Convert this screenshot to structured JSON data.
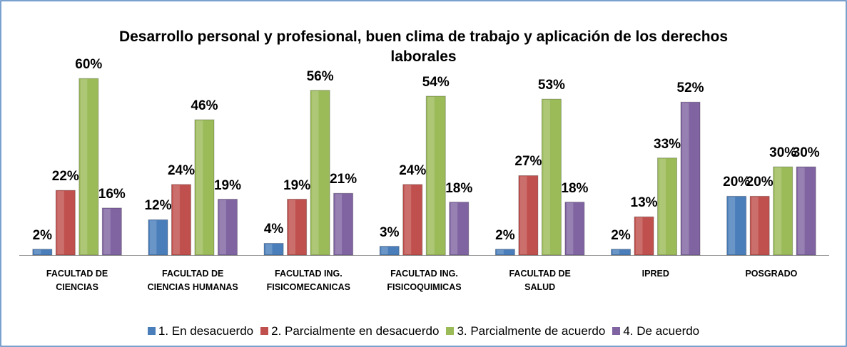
{
  "chart_data": {
    "type": "bar",
    "title": "Desarrollo personal y profesional, buen clima de trabajo y aplicación de los derechos laborales",
    "categories": [
      "FACULTAD DE\nCIENCIAS",
      "FACULTAD DE\nCIENCIAS HUMANAS",
      "FACULTAD ING.\nFISICOMECANICAS",
      "FACULTAD ING.\nFISICOQUIMICAS",
      "FACULTAD DE\nSALUD",
      "IPRED",
      "POSGRADO"
    ],
    "series": [
      {
        "name": "1. En desacuerdo",
        "color": "#4a7ebb",
        "values": [
          2,
          12,
          4,
          3,
          2,
          2,
          20
        ],
        "value_labels": [
          "2%",
          "12%",
          "4%",
          "3%",
          "2%",
          "2%",
          "20%"
        ]
      },
      {
        "name": "2. Parcialmente en desacuerdo",
        "color": "#c0504d",
        "values": [
          22,
          24,
          19,
          24,
          27,
          13,
          20
        ],
        "value_labels": [
          "22%",
          "24%",
          "19%",
          "24%",
          "27%",
          "13%",
          "20%"
        ]
      },
      {
        "name": "3. Parcialmente de acuerdo",
        "color": "#9bbb59",
        "values": [
          60,
          46,
          56,
          54,
          53,
          33,
          30
        ],
        "value_labels": [
          "60%",
          "46%",
          "56%",
          "54%",
          "53%",
          "33%",
          "30%"
        ]
      },
      {
        "name": "4. De acuerdo",
        "color": "#8064a2",
        "values": [
          16,
          19,
          21,
          18,
          18,
          52,
          30
        ],
        "value_labels": [
          "16%",
          "19%",
          "21%",
          "18%",
          "18%",
          "52%",
          "30%"
        ]
      }
    ],
    "legend": "bottom"
  }
}
